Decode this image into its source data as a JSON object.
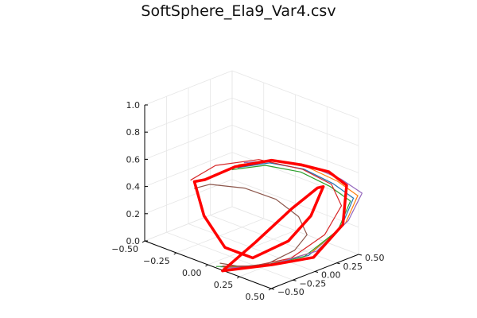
{
  "chart_data": {
    "type": "line",
    "title": "SoftSphere_Ela9_Var4.csv",
    "xlabel": "",
    "ylabel": "",
    "zlabel": "",
    "xlim": [
      -0.5,
      0.5
    ],
    "ylim": [
      -0.5,
      0.5
    ],
    "zlim": [
      0,
      1
    ],
    "x_ticks": [
      "−0.50",
      "−0.25",
      "0.00",
      "0.25",
      "0.50"
    ],
    "y_ticks": [
      "−0.50",
      "−0.25",
      "0.00",
      "0.25",
      "0.50"
    ],
    "z_ticks": [
      "0.0",
      "0.2",
      "0.4",
      "0.6",
      "0.8",
      "1.0"
    ],
    "grid": true,
    "legend": "none",
    "series_colors": [
      "#1f77b4",
      "#ff7f0e",
      "#2ca02c",
      "#d62728",
      "#9467bd",
      "#8c564b",
      "#e377c2",
      "#7f7f7f",
      "#bcbd22",
      "#17becf"
    ],
    "highlight_color": "#ff0000",
    "highlight_series": {
      "x": [
        0.15,
        0.3,
        0.42,
        0.48,
        0.44,
        0.3,
        0.12,
        -0.05,
        -0.2,
        -0.3,
        -0.28,
        -0.1,
        0.1,
        0.25,
        0.36,
        0.4,
        0.36,
        0.28,
        0.18,
        0.1,
        0.15
      ],
      "y": [
        -0.55,
        -0.2,
        0.1,
        0.35,
        0.45,
        0.45,
        0.4,
        0.3,
        0.1,
        -0.1,
        -0.25,
        -0.4,
        -0.45,
        -0.35,
        -0.1,
        0.1,
        0.3,
        0.35,
        0.2,
        -0.1,
        -0.55
      ],
      "z": [
        0.02,
        0.03,
        0.05,
        0.25,
        0.5,
        0.55,
        0.55,
        0.55,
        0.5,
        0.42,
        0.45,
        0.3,
        0.15,
        0.1,
        0.2,
        0.35,
        0.5,
        0.45,
        0.3,
        0.1,
        0.02
      ]
    },
    "bundle_series": [
      {
        "name": "",
        "x": [
          0.1,
          0.3,
          0.45,
          0.5,
          0.46,
          0.3,
          0.1,
          -0.1,
          -0.25
        ],
        "y": [
          -0.5,
          -0.3,
          0.0,
          0.3,
          0.5,
          0.5,
          0.45,
          0.35,
          0.2
        ],
        "z": [
          0.02,
          0.05,
          0.1,
          0.25,
          0.4,
          0.45,
          0.5,
          0.5,
          0.45
        ]
      },
      {
        "name": "",
        "x": [
          0.12,
          0.32,
          0.46,
          0.52,
          0.48,
          0.32,
          0.12,
          -0.08,
          -0.25
        ],
        "y": [
          -0.5,
          -0.28,
          0.02,
          0.32,
          0.52,
          0.52,
          0.46,
          0.36,
          0.21
        ],
        "z": [
          0.02,
          0.05,
          0.12,
          0.28,
          0.42,
          0.47,
          0.52,
          0.52,
          0.47
        ]
      },
      {
        "name": "",
        "x": [
          0.08,
          0.28,
          0.43,
          0.49,
          0.45,
          0.29,
          0.09,
          -0.12,
          -0.28
        ],
        "y": [
          -0.52,
          -0.32,
          -0.02,
          0.28,
          0.48,
          0.48,
          0.43,
          0.33,
          0.18
        ],
        "z": [
          0.02,
          0.04,
          0.09,
          0.23,
          0.38,
          0.43,
          0.48,
          0.48,
          0.43
        ]
      },
      {
        "name": "",
        "x": [
          0.1,
          0.25,
          0.38,
          0.44,
          0.42,
          0.3,
          0.1,
          -0.15,
          -0.32,
          -0.38
        ],
        "y": [
          -0.48,
          -0.35,
          -0.1,
          0.2,
          0.42,
          0.48,
          0.44,
          0.3,
          0.05,
          -0.15
        ],
        "z": [
          0.02,
          0.04,
          0.08,
          0.2,
          0.35,
          0.45,
          0.5,
          0.52,
          0.48,
          0.4
        ]
      },
      {
        "name": "",
        "x": [
          0.14,
          0.34,
          0.48,
          0.53,
          0.5,
          0.34,
          0.15,
          -0.05,
          -0.22
        ],
        "y": [
          -0.49,
          -0.26,
          0.05,
          0.34,
          0.54,
          0.53,
          0.47,
          0.37,
          0.23
        ],
        "z": [
          0.02,
          0.06,
          0.13,
          0.3,
          0.44,
          0.49,
          0.53,
          0.53,
          0.49
        ]
      },
      {
        "name": "",
        "x": [
          0.06,
          0.2,
          0.3,
          0.34,
          0.3,
          0.15,
          -0.05,
          -0.25,
          -0.4,
          -0.42
        ],
        "y": [
          -0.45,
          -0.4,
          -0.25,
          0.0,
          0.2,
          0.32,
          0.35,
          0.28,
          0.1,
          -0.05
        ],
        "z": [
          0.02,
          0.03,
          0.05,
          0.1,
          0.15,
          0.2,
          0.25,
          0.28,
          0.3,
          0.3
        ]
      }
    ]
  }
}
